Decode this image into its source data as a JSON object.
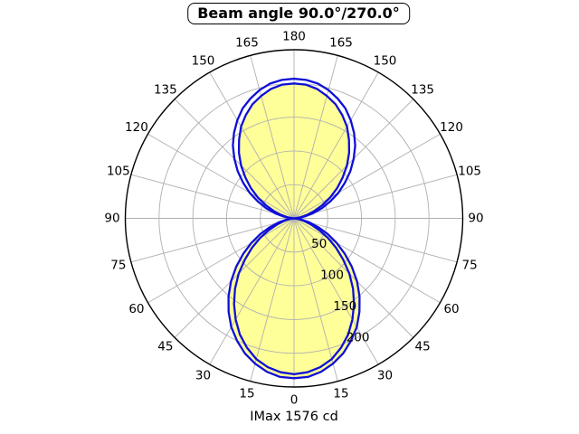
{
  "title": "Beam angle 90.0°/270.0°",
  "footer": "IMax 1576 cd",
  "chart_data": {
    "type": "line",
    "subtype": "polar-intensity-distribution",
    "title": "Beam angle 90.0°/270.0°",
    "footer_annotation": "IMax 1576 cd",
    "imax_cd": 1576,
    "orientation": "0° at bottom, 180° at top, angles mirrored left/right",
    "grid": true,
    "legend_position": "none",
    "r_axis": {
      "ticks": [
        50,
        100,
        150,
        200
      ],
      "max": 250,
      "label_angle_deg": 22.5
    },
    "angle_ticks": [
      0,
      15,
      30,
      45,
      60,
      75,
      90,
      105,
      120,
      135,
      150,
      165,
      180
    ],
    "angles_deg_from_bottom": [
      0,
      5,
      10,
      15,
      20,
      25,
      30,
      35,
      40,
      45,
      50,
      55,
      60,
      65,
      70,
      75,
      80,
      85,
      90,
      95,
      100,
      105,
      110,
      115,
      120,
      125,
      130,
      135,
      140,
      145,
      150,
      155,
      160,
      165,
      170,
      175,
      180
    ],
    "mirror_symmetric": true,
    "series": [
      {
        "name": "curve-1-filled",
        "color": "#0f0fd8",
        "fill": "#ffff99",
        "values": [
          237,
          236,
          231,
          223,
          213,
          200,
          186,
          169,
          151,
          132,
          112,
          92,
          73,
          55,
          38,
          24,
          12,
          4,
          0,
          3,
          10,
          20,
          32,
          46,
          62,
          78,
          94,
          111,
          127,
          142,
          157,
          169,
          180,
          188,
          195,
          199,
          200
        ]
      },
      {
        "name": "curve-2",
        "color": "#0f0fd8",
        "fill": "none",
        "values": [
          231,
          229,
          224,
          216,
          204,
          190,
          173,
          155,
          136,
          116,
          95,
          76,
          58,
          41,
          27,
          16,
          7,
          2,
          0,
          6,
          16,
          29,
          44,
          59,
          76,
          92,
          109,
          125,
          141,
          155,
          168,
          180,
          189,
          197,
          203,
          206,
          207
        ]
      }
    ],
    "colors": {
      "curve": "#0f0fd8",
      "fill": "#ffff99",
      "grid": "#b0b0b0",
      "outer_ring": "#000000",
      "text": "#000000",
      "background": "#ffffff"
    }
  }
}
